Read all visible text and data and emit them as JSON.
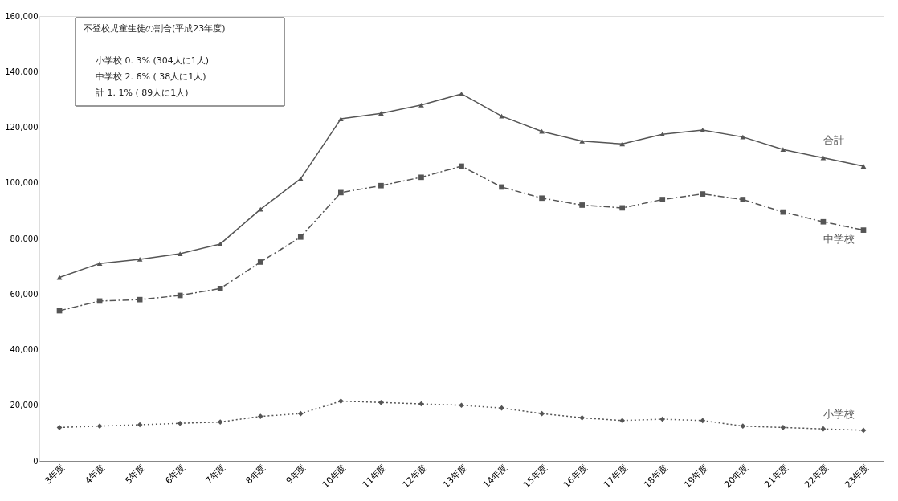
{
  "chart_data": {
    "type": "line",
    "categories": [
      "3年度",
      "4年度",
      "5年度",
      "6年度",
      "7年度",
      "8年度",
      "9年度",
      "10年度",
      "11年度",
      "12年度",
      "13年度",
      "14年度",
      "15年度",
      "16年度",
      "17年度",
      "18年度",
      "19年度",
      "20年度",
      "21年度",
      "22年度",
      "23年度"
    ],
    "series": [
      {
        "name": "合計",
        "color": "#555555",
        "marker": "triangle",
        "line_style": "solid",
        "values": [
          66000,
          71000,
          72500,
          74500,
          78000,
          90500,
          101500,
          123000,
          125000,
          128000,
          132000,
          124000,
          118500,
          115000,
          114000,
          117500,
          119000,
          116500,
          112000,
          109000,
          106000
        ]
      },
      {
        "name": "中学校",
        "color": "#555555",
        "marker": "square",
        "line_style": "dashed",
        "values": [
          54000,
          57500,
          58000,
          59500,
          62000,
          71500,
          80500,
          96500,
          99000,
          102000,
          106000,
          98500,
          94500,
          92000,
          91000,
          94000,
          96000,
          94000,
          89500,
          86000,
          83000
        ]
      },
      {
        "name": "小学校",
        "color": "#555555",
        "marker": "diamond",
        "line_style": "dotted",
        "values": [
          12000,
          12500,
          13000,
          13500,
          14000,
          16000,
          17000,
          21500,
          21000,
          20500,
          20000,
          19000,
          17000,
          15500,
          14500,
          15000,
          14500,
          12500,
          12000,
          11500,
          11000
        ]
      }
    ],
    "ylim": [
      0,
      160000
    ],
    "yticks": [
      0,
      {
        "value": 20000,
        "label": "20,000"
      },
      {
        "value": 40000,
        "label": "40,000"
      },
      {
        "value": 60000,
        "label": "60,000"
      },
      {
        "value": 80000,
        "label": "80,000"
      },
      {
        "value": 100000,
        "label": "100,000"
      },
      {
        "value": 120000,
        "label": "120,000"
      },
      {
        "value": 140000,
        "label": "140,000"
      },
      {
        "value": 160000,
        "label": "160,000"
      }
    ],
    "grid": false,
    "annotations": [
      "不登校児童生徒の割合(平成23年度)",
      "小学校  0. 3%  (304人に1人)",
      "中学校  2. 6%  (  38人に1人)",
      "計     1. 1%  (  89人に1人)"
    ]
  }
}
